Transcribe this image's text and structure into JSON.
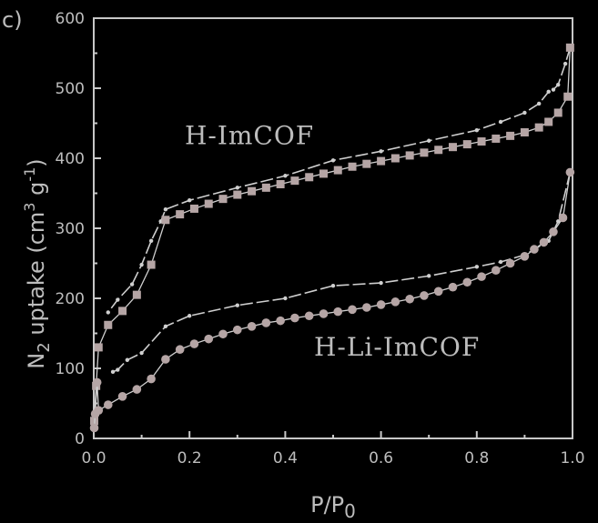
{
  "chart_data": {
    "type": "line",
    "panel_label": "c)",
    "xlabel": "P/P",
    "xlabel_sub": "0",
    "ylabel": "N",
    "ylabel_sub": "2",
    "ylabel_rest": " uptake (cm",
    "ylabel_sup": "3",
    "ylabel_tail": " g",
    "ylabel_sup2": "-1",
    "ylabel_close": ")",
    "xlim": [
      0.0,
      1.0
    ],
    "ylim": [
      0,
      600
    ],
    "xticks": [
      0.0,
      0.2,
      0.4,
      0.6,
      0.8,
      1.0
    ],
    "xtick_labels": [
      "0.0",
      "0.2",
      "0.4",
      "0.6",
      "0.8",
      "1.0"
    ],
    "yticks": [
      0,
      100,
      200,
      300,
      400,
      500,
      600
    ],
    "ytick_labels": [
      "0",
      "100",
      "200",
      "300",
      "400",
      "500",
      "600"
    ],
    "colors": {
      "background": "#000000",
      "axis": "#c8c8c8",
      "marker": "#b5a5a5",
      "desorption": "#cfcfcf",
      "text": "#bdbdbd"
    },
    "series": [
      {
        "name": "H-ImCOF",
        "marker": "square",
        "adsorption": {
          "x": [
            0.001,
            0.005,
            0.01,
            0.03,
            0.06,
            0.09,
            0.12,
            0.15,
            0.18,
            0.21,
            0.24,
            0.27,
            0.3,
            0.33,
            0.36,
            0.39,
            0.42,
            0.45,
            0.48,
            0.51,
            0.54,
            0.57,
            0.6,
            0.63,
            0.66,
            0.69,
            0.72,
            0.75,
            0.78,
            0.81,
            0.84,
            0.87,
            0.9,
            0.93,
            0.95,
            0.97,
            0.99,
            0.995
          ],
          "y": [
            25,
            75,
            130,
            162,
            182,
            205,
            248,
            312,
            320,
            328,
            335,
            342,
            348,
            353,
            358,
            363,
            368,
            373,
            378,
            383,
            388,
            392,
            396,
            400,
            404,
            408,
            412,
            416,
            420,
            424,
            428,
            432,
            437,
            444,
            452,
            465,
            488,
            558
          ]
        },
        "desorption": {
          "x": [
            0.995,
            0.985,
            0.97,
            0.96,
            0.95,
            0.93,
            0.9,
            0.85,
            0.8,
            0.7,
            0.6,
            0.5,
            0.4,
            0.3,
            0.2,
            0.15,
            0.14,
            0.12,
            0.1,
            0.08,
            0.05,
            0.03
          ],
          "y": [
            558,
            535,
            505,
            498,
            495,
            478,
            465,
            452,
            440,
            425,
            410,
            397,
            375,
            358,
            340,
            327,
            310,
            282,
            248,
            220,
            198,
            180
          ]
        }
      },
      {
        "name": "H-Li-ImCOF",
        "marker": "circle",
        "adsorption": {
          "x": [
            0.001,
            0.003,
            0.007,
            0.01,
            0.03,
            0.06,
            0.09,
            0.12,
            0.15,
            0.18,
            0.21,
            0.24,
            0.27,
            0.3,
            0.33,
            0.36,
            0.39,
            0.42,
            0.45,
            0.48,
            0.51,
            0.54,
            0.57,
            0.6,
            0.63,
            0.66,
            0.69,
            0.72,
            0.75,
            0.78,
            0.81,
            0.84,
            0.87,
            0.9,
            0.92,
            0.94,
            0.96,
            0.98,
            0.995
          ],
          "y": [
            15,
            35,
            80,
            40,
            48,
            60,
            70,
            85,
            113,
            127,
            135,
            142,
            149,
            155,
            160,
            165,
            168,
            172,
            175,
            178,
            181,
            184,
            187,
            191,
            195,
            199,
            204,
            210,
            216,
            223,
            231,
            240,
            250,
            260,
            270,
            280,
            295,
            315,
            380
          ]
        },
        "desorption": {
          "x": [
            0.995,
            0.97,
            0.95,
            0.9,
            0.85,
            0.8,
            0.7,
            0.6,
            0.5,
            0.4,
            0.3,
            0.2,
            0.15,
            0.1,
            0.07,
            0.05,
            0.04
          ],
          "y": [
            380,
            310,
            282,
            262,
            252,
            245,
            232,
            222,
            218,
            200,
            190,
            175,
            160,
            122,
            112,
            98,
            95
          ]
        }
      }
    ],
    "labels": [
      {
        "text": "H-ImCOF",
        "x": 0.19,
        "y": 420
      },
      {
        "text": "H-Li-ImCOF",
        "x": 0.46,
        "y": 118
      }
    ],
    "grid": false
  }
}
